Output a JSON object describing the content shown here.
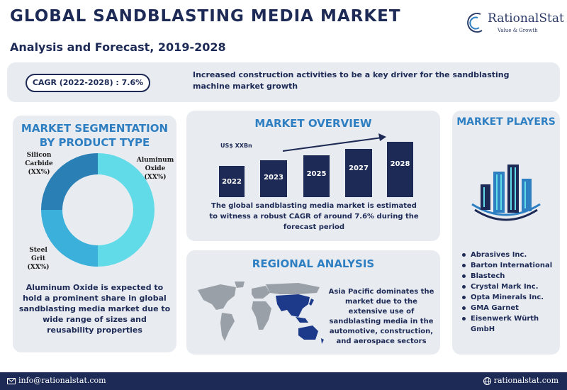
{
  "header": {
    "title": "GLOBAL SANDBLASTING MEDIA MARKET",
    "subtitle": "Analysis and Forecast, 2019-2028"
  },
  "logo": {
    "name": "RationalStat",
    "tagline": "Value & Growth",
    "icon": "rationalstat-logo-icon"
  },
  "highlight": {
    "cagr": "CAGR (2022-2028) : 7.6%",
    "text": "Increased construction activities to be a key driver for the sandblasting machine market growth"
  },
  "segmentation": {
    "heading": "MARKET SEGMENTATION BY PRODUCT TYPE",
    "labels": {
      "silicon_carbide": "Silicon Carbide (XX%)",
      "aluminum_oxide": "Aluminum Oxide (XX%)",
      "steel_grit": "Steel Grit (XX%)"
    },
    "body": "Aluminum Oxide is expected to hold a prominent share in global sandblasting media market due to wide range of sizes and reusability properties",
    "colors": {
      "aluminum_oxide": "#62dbe8",
      "steel_grit": "#3ab0db",
      "silicon_carbide": "#2a7fb5"
    }
  },
  "overview": {
    "heading": "MARKET OVERVIEW",
    "unit_label": "US$ XXBn",
    "years": [
      "2022",
      "2023",
      "2025",
      "2027",
      "2028"
    ],
    "body": "The global sandblasting media market is estimated to witness a robust CAGR of around 7.6% during the forecast period"
  },
  "regional": {
    "heading": "REGIONAL ANALYSIS",
    "body": "Asia Pacific dominates the market due to the extensive use of sandblasting media in the automotive, construction, and aerospace sectors",
    "highlight_color": "#1d3a8a"
  },
  "players": {
    "heading": "MARKET PLAYERS",
    "list": [
      "Abrasives Inc.",
      "Barton International",
      "Blastech",
      "Crystal Mark Inc.",
      "Opta Minerals Inc.",
      "GMA Garnet",
      "Eisenwerk Würth GmbH"
    ]
  },
  "footer": {
    "email": "info@rationalstat.com",
    "website": "rationalstat.com"
  },
  "colors": {
    "navy": "#1d2a55",
    "accent_blue": "#2e7fc2",
    "panel_bg": "#e8ecf1"
  }
}
